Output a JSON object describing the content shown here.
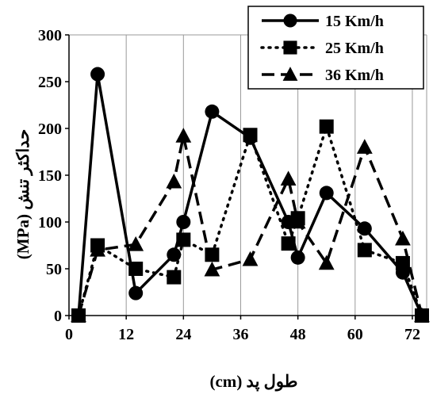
{
  "chart_data": {
    "type": "line",
    "title": "",
    "xlabel": "طول پد (cm)",
    "ylabel": "حداکثر تنش (MPa)",
    "xlim": [
      0,
      75
    ],
    "ylim": [
      0,
      300
    ],
    "x_ticks": [
      0,
      12,
      24,
      36,
      48,
      60,
      72
    ],
    "y_ticks": [
      0,
      50,
      100,
      150,
      200,
      250,
      300
    ],
    "grid": "vertical-lines",
    "legend_position": "top-right",
    "series": [
      {
        "name": "15 Km/h",
        "line_style": "solid",
        "marker": "circle",
        "x": [
          2,
          6,
          14,
          22,
          24,
          30,
          38,
          46,
          48,
          54,
          62,
          70,
          74
        ],
        "y": [
          0,
          258,
          24,
          65,
          100,
          218,
          190,
          100,
          62,
          131,
          93,
          46,
          0
        ]
      },
      {
        "name": "25 Km/h",
        "line_style": "dotted",
        "marker": "square",
        "x": [
          2,
          6,
          14,
          22,
          24,
          30,
          38,
          46,
          48,
          54,
          62,
          70,
          74
        ],
        "y": [
          0,
          75,
          50,
          41,
          81,
          65,
          193,
          77,
          104,
          202,
          70,
          56,
          0
        ]
      },
      {
        "name": "36 Km/h",
        "line_style": "dashed",
        "marker": "triangle",
        "x": [
          2,
          6,
          14,
          22,
          24,
          30,
          38,
          46,
          48,
          54,
          62,
          70,
          74
        ],
        "y": [
          0,
          70,
          76,
          143,
          192,
          49,
          60,
          146,
          100,
          56,
          180,
          82,
          0
        ]
      }
    ]
  }
}
